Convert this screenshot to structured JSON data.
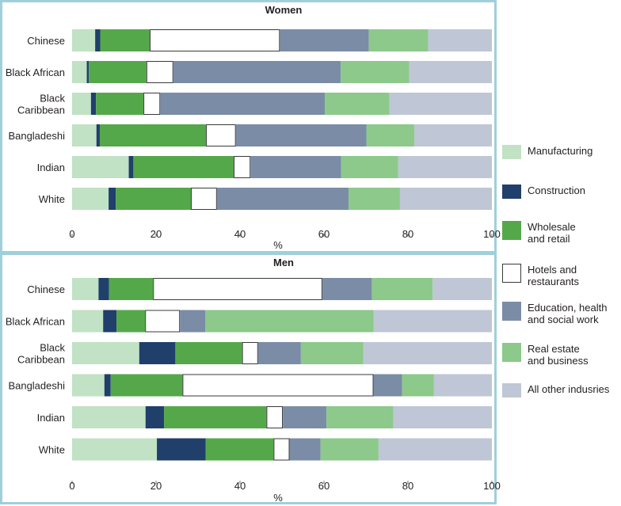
{
  "chart_data": [
    {
      "type": "bar",
      "orientation": "horizontal",
      "stacked": true,
      "title": "Women",
      "xlabel": "%",
      "xlim": [
        0,
        100
      ],
      "xticks": [
        0,
        20,
        40,
        60,
        80,
        100
      ],
      "categories": [
        "Chinese",
        "Black African",
        "Black Caribbean",
        "Bangladeshi",
        "Indian",
        "White"
      ],
      "series": [
        {
          "name": "Manufacturing",
          "values": [
            5.5,
            3.5,
            4.5,
            5.8,
            13.5,
            8.7
          ]
        },
        {
          "name": "Construction",
          "values": [
            1.2,
            0.5,
            1.2,
            0.8,
            1.1,
            1.7
          ]
        },
        {
          "name": "Wholesale and retail",
          "values": [
            11.8,
            13.7,
            11.3,
            25.3,
            23.9,
            17.9
          ]
        },
        {
          "name": "Hotels and restaurants",
          "values": [
            31.0,
            6.4,
            4.0,
            7.1,
            4.0,
            6.2
          ]
        },
        {
          "name": "Education, health and social work",
          "values": [
            21.2,
            39.9,
            39.2,
            31.1,
            21.6,
            31.4
          ]
        },
        {
          "name": "Real estate and business",
          "values": [
            14.1,
            16.3,
            15.4,
            11.4,
            13.6,
            12.2
          ]
        },
        {
          "name": "All other indusries",
          "values": [
            15.2,
            19.7,
            24.4,
            18.5,
            22.3,
            21.9
          ]
        }
      ]
    },
    {
      "type": "bar",
      "orientation": "horizontal",
      "stacked": true,
      "title": "Men",
      "xlabel": "%",
      "xlim": [
        0,
        100
      ],
      "xticks": [
        0,
        20,
        40,
        60,
        80,
        100
      ],
      "categories": [
        "Chinese",
        "Black African",
        "Black Caribbean",
        "Bangladeshi",
        "Indian",
        "White"
      ],
      "series": [
        {
          "name": "Manufacturing",
          "values": [
            6.3,
            7.4,
            16.0,
            7.7,
            17.5,
            20.2
          ]
        },
        {
          "name": "Construction",
          "values": [
            2.5,
            3.2,
            8.6,
            1.5,
            4.4,
            11.6
          ]
        },
        {
          "name": "Wholesale and retail",
          "values": [
            10.5,
            6.8,
            15.9,
            17.1,
            24.4,
            16.2
          ]
        },
        {
          "name": "Hotels and restaurants",
          "values": [
            40.3,
            8.3,
            3.8,
            45.5,
            3.9,
            3.8
          ]
        },
        {
          "name": "Education, health and social work",
          "values": [
            11.8,
            6.0,
            10.2,
            6.8,
            10.4,
            7.4
          ]
        },
        {
          "name": "Real estate and business",
          "values": [
            14.5,
            40.1,
            14.9,
            7.6,
            15.9,
            13.8
          ]
        },
        {
          "name": "All other indusries",
          "values": [
            14.1,
            28.2,
            30.6,
            13.8,
            23.5,
            27.0
          ]
        }
      ]
    }
  ],
  "legend": {
    "placement": "right",
    "items": [
      {
        "label_lines": [
          "Manufacturing"
        ],
        "fill": "#c1e2c4",
        "stroke": "#c1e2c4"
      },
      {
        "label_lines": [
          "Construction"
        ],
        "fill": "#213f6b",
        "stroke": "#213f6b"
      },
      {
        "label_lines": [
          "Wholesale",
          "and retail"
        ],
        "fill": "#55a84a",
        "stroke": "#55a84a"
      },
      {
        "label_lines": [
          "Hotels and",
          "restaurants"
        ],
        "fill": "#ffffff",
        "stroke": "#3a3a3a"
      },
      {
        "label_lines": [
          "Education, health",
          "and social work"
        ],
        "fill": "#7b8ca6",
        "stroke": "#7b8ca6"
      },
      {
        "label_lines": [
          "Real estate",
          "and business"
        ],
        "fill": "#8cc98a",
        "stroke": "#8cc98a"
      },
      {
        "label_lines": [
          "All other indusries"
        ],
        "fill": "#bfc6d5",
        "stroke": "#bfc6d5"
      }
    ]
  },
  "category_display": {
    "Black Caribbean": [
      "Black",
      "Caribbean"
    ]
  },
  "colors": {
    "panel_border": "#9fcfdc",
    "text": "#231f20"
  }
}
